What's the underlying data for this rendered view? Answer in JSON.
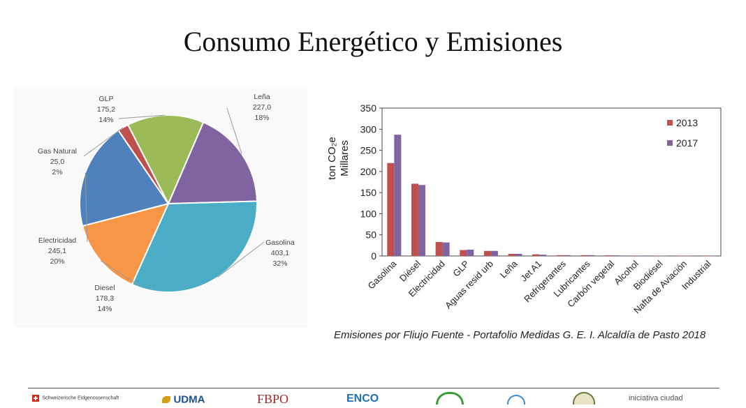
{
  "title": "Consumo Energético y Emisiones",
  "caption": "Emisiones por Fliujo Fuente - Portafolio Medidas G. E. I. Alcaldía de Pasto 2018",
  "chart_data": [
    {
      "type": "pie",
      "slices": [
        {
          "label": "Leña",
          "value": 227.0,
          "value_text": "227,0",
          "percent_text": "18%",
          "color": "#8064a2"
        },
        {
          "label": "Gasolina",
          "value": 403.1,
          "value_text": "403,1",
          "percent_text": "32%",
          "color": "#4bacc6"
        },
        {
          "label": "Diesel",
          "value": 178.3,
          "value_text": "178,3",
          "percent_text": "14%",
          "color": "#f79646"
        },
        {
          "label": "Electricidad",
          "value": 245.1,
          "value_text": "245,1",
          "percent_text": "20%",
          "color": "#4f81bd"
        },
        {
          "label": "Gas Natural",
          "value": 25.0,
          "value_text": "25,0",
          "percent_text": "2%",
          "color": "#c0504d"
        },
        {
          "label": "GLP",
          "value": 175.2,
          "value_text": "175,2",
          "percent_text": "14%",
          "color": "#9bbb59"
        }
      ]
    },
    {
      "type": "bar",
      "ylabel_line1": "ton CO₂e",
      "ylabel_line2": "Millares",
      "ylim": [
        0,
        350
      ],
      "yticks": [
        0,
        50,
        100,
        150,
        200,
        250,
        300,
        350
      ],
      "categories": [
        "Gasolina",
        "Diésel",
        "Electricidad",
        "GLP",
        "Aguas resid urb",
        "Leña",
        "Jet A1",
        "Refrigerantes",
        "Lubricantes",
        "Carbón vegetal",
        "Alcohol",
        "Biodiésel",
        "Nafta de Aviación",
        "Industrial"
      ],
      "series": [
        {
          "name": "2013",
          "color": "#c0504d",
          "values": [
            220,
            171,
            33,
            14,
            12,
            5,
            4,
            2,
            2,
            1.5,
            1,
            0.5,
            0.5,
            0.3
          ]
        },
        {
          "name": "2017",
          "color": "#8064a2",
          "values": [
            287,
            168,
            32,
            15,
            12,
            5,
            3,
            2,
            2,
            1.5,
            1,
            0.5,
            0.5,
            0.3
          ]
        }
      ],
      "legend": "top-right",
      "grid": false
    }
  ],
  "footer": {
    "logos": [
      {
        "text": "Schweizerische Eidgenossenschaft",
        "icon": "swiss-flag-icon"
      },
      {
        "text": "UDMA"
      },
      {
        "text": "FBPO"
      },
      {
        "text": "ENCO"
      },
      {
        "text": "",
        "icon": "green-circle-logo-icon"
      },
      {
        "text": "",
        "icon": "blue-circle-logo-icon"
      },
      {
        "text": "",
        "icon": "seal-logo-icon"
      },
      {
        "text": "iniciativa ciudad"
      }
    ]
  }
}
